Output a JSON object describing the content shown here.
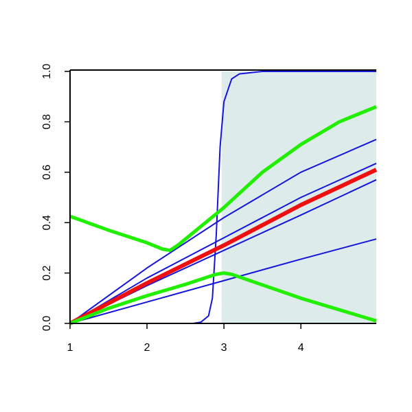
{
  "chart_data": {
    "type": "line",
    "xlim": [
      1,
      4.98
    ],
    "ylim": [
      0,
      1
    ],
    "xticks": [
      1,
      2,
      3,
      4
    ],
    "yticks": [
      {
        "value": 0,
        "label": "0.0"
      },
      {
        "value": 0.2,
        "label": "0.2"
      },
      {
        "value": 0.4,
        "label": "0.4"
      },
      {
        "value": 0.6,
        "label": "0.6"
      },
      {
        "value": 0.8,
        "label": "0.8"
      },
      {
        "value": 1,
        "label": "1.0"
      }
    ],
    "highlight": [
      2.97,
      4.98
    ],
    "highlight_color": "#deebeb",
    "series": [
      {
        "color": "#1414dc",
        "width": 2,
        "x": [
          1,
          2,
          3,
          4,
          4.98
        ],
        "values": [
          0,
          0.22,
          0.42,
          0.6,
          0.73
        ]
      },
      {
        "color": "#1414dc",
        "width": 2,
        "x": [
          1,
          2,
          3,
          4,
          4.98
        ],
        "values": [
          0,
          0.18,
          0.34,
          0.5,
          0.635
        ]
      },
      {
        "color": "#1414dc",
        "width": 2,
        "x": [
          1,
          2,
          3,
          4,
          4.98
        ],
        "values": [
          0,
          0.15,
          0.29,
          0.43,
          0.57
        ]
      },
      {
        "color": "#1414dc",
        "width": 2,
        "x": [
          1,
          2,
          3,
          4,
          4.98
        ],
        "values": [
          0,
          0.085,
          0.17,
          0.255,
          0.335
        ]
      },
      {
        "color": "#1414dc",
        "width": 2,
        "x": [
          1,
          2.6,
          2.7,
          2.8,
          2.85,
          2.9,
          2.95,
          3.0,
          3.1,
          3.2,
          3.5,
          4.98
        ],
        "values": [
          0,
          0,
          0.005,
          0.03,
          0.1,
          0.35,
          0.7,
          0.88,
          0.97,
          0.99,
          1,
          1
        ]
      },
      {
        "color": "#ee1010",
        "width": 6,
        "x": [
          1,
          2,
          3,
          4,
          4.98
        ],
        "values": [
          0,
          0.16,
          0.31,
          0.47,
          0.61
        ]
      },
      {
        "color": "#22ee00",
        "width": 5,
        "x": [
          1,
          1.5,
          2,
          2.2,
          2.3,
          2.4,
          2.6,
          2.8,
          3,
          3.5,
          4,
          4.5,
          4.98
        ],
        "values": [
          0.425,
          0.37,
          0.32,
          0.295,
          0.29,
          0.31,
          0.36,
          0.41,
          0.46,
          0.6,
          0.71,
          0.8,
          0.86
        ]
      },
      {
        "color": "#22ee00",
        "width": 5,
        "x": [
          1,
          1.5,
          2,
          2.5,
          2.9,
          3.0,
          3.1,
          4,
          4.98
        ],
        "values": [
          0,
          0.06,
          0.11,
          0.155,
          0.195,
          0.2,
          0.195,
          0.1,
          0.01
        ]
      }
    ]
  }
}
